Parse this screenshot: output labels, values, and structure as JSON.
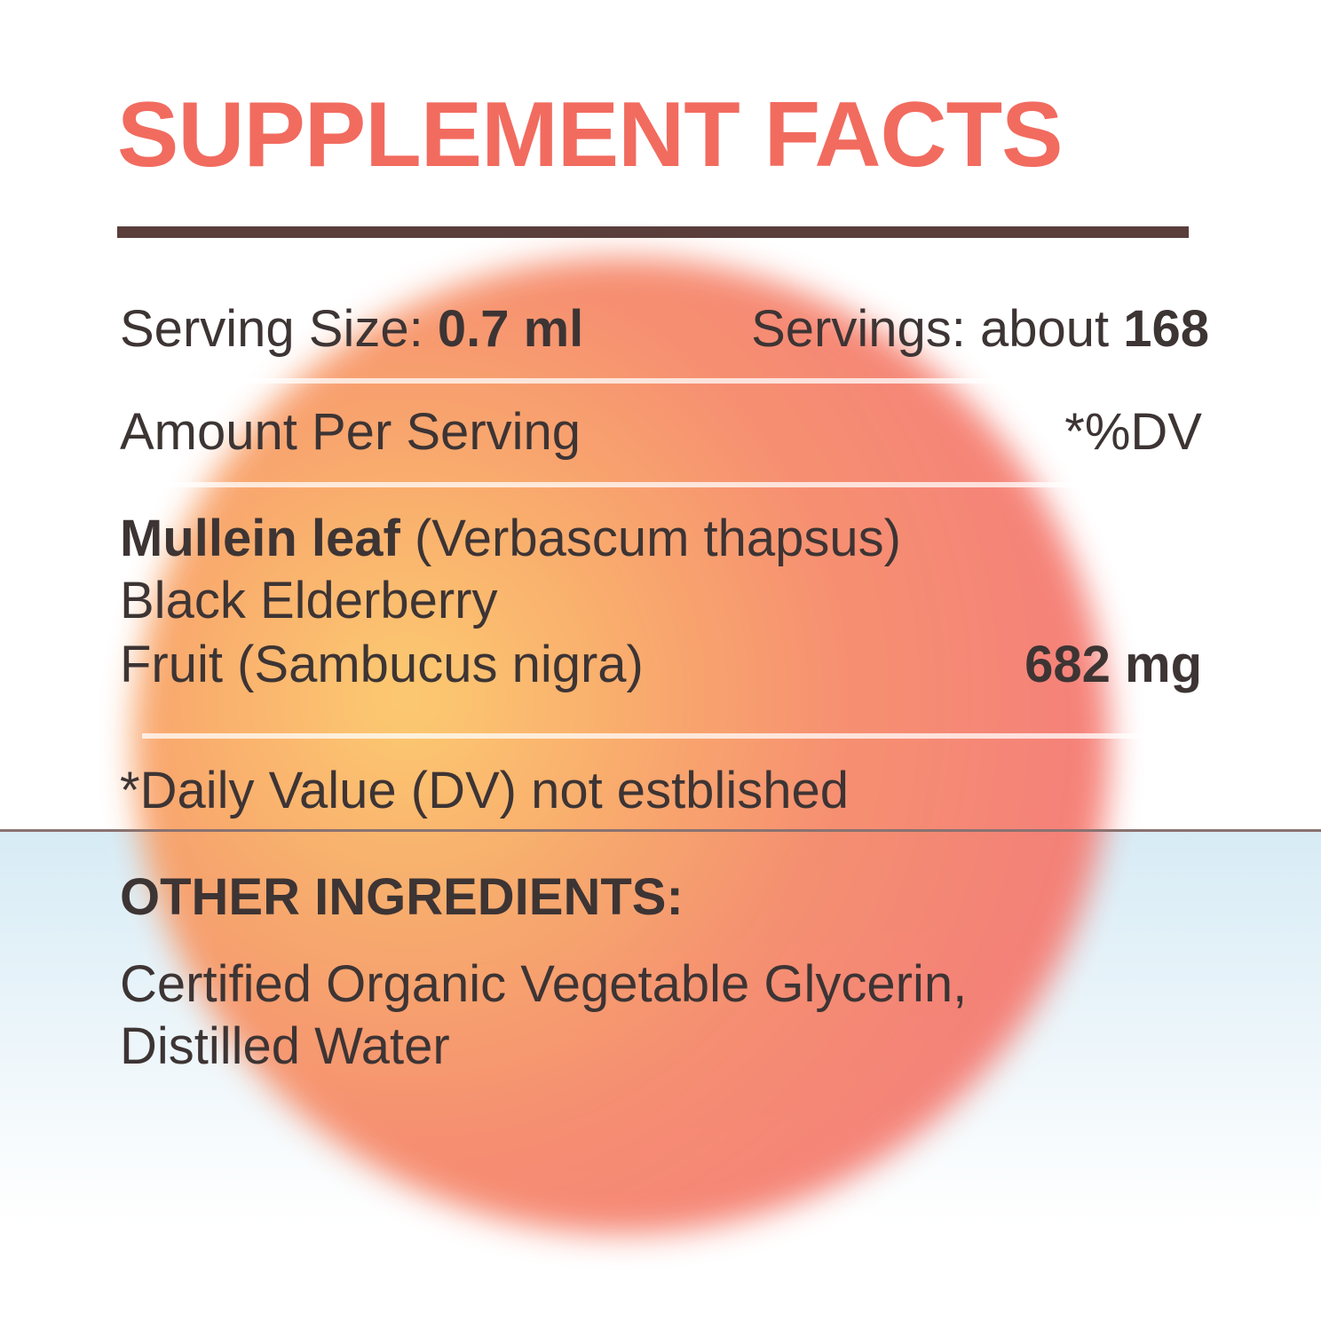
{
  "header": {
    "title": "SUPPLEMENT FACTS"
  },
  "serving": {
    "size_label": "Serving Size:",
    "size_value": "0.7 ml",
    "servings_label": "Servings: about",
    "servings_value": "168"
  },
  "table_header": {
    "left": "Amount Per Serving",
    "right": "*%DV"
  },
  "ingredients": [
    {
      "name_bold": "Mullein leaf",
      "name_rest": "(Verbascum thapsus)",
      "line2": "Black Elderberry",
      "line3": "Fruit (Sambucus nigra)",
      "amount": "682 mg"
    }
  ],
  "footnote": "*Daily Value (DV) not estblished",
  "other": {
    "title": "OTHER INGREDIENTS:",
    "lines": [
      "Certified Organic Vegetable Glycerin,",
      "Distilled Water"
    ]
  }
}
